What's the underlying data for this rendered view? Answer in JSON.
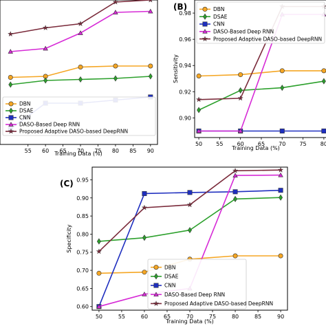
{
  "chart_data": [
    {
      "panel": "",
      "type": "line",
      "x": [
        50,
        60,
        70,
        80,
        90
      ],
      "xticks": [
        55,
        60,
        65,
        70,
        75,
        80,
        85,
        90
      ],
      "xlabel": "Training Data (%)",
      "ylabel": "",
      "xlim": [
        47,
        92
      ],
      "ylim": [
        0.86,
        1.0
      ],
      "grid": false,
      "legend_position": "bottom-right",
      "series": [
        {
          "name": "DBN",
          "values": [
            0.925,
            0.926,
            0.935,
            0.936,
            0.936
          ]
        },
        {
          "name": "DSAE",
          "values": [
            0.918,
            0.922,
            0.923,
            0.924,
            0.926
          ]
        },
        {
          "name": "CNN",
          "values": [
            0.875,
            0.9,
            0.9,
            0.903,
            0.906
          ]
        },
        {
          "name": "DASO-Based Deep RNN",
          "values": [
            0.95,
            0.953,
            0.968,
            0.988,
            0.989
          ]
        },
        {
          "name": "Proposed Adaptive DASO-based DeepRNN",
          "values": [
            0.967,
            0.973,
            0.977,
            0.998,
            1.0
          ]
        }
      ]
    },
    {
      "panel": "(B)",
      "type": "line",
      "x": [
        50,
        60,
        70,
        80
      ],
      "xticks": [
        50,
        55,
        60,
        65,
        70,
        75,
        80
      ],
      "xlabel": "Training Data (%)",
      "ylabel": "Sensitivity",
      "yticks": [
        0.9,
        0.92,
        0.94,
        0.96,
        0.98
      ],
      "ylim": [
        0.885,
        0.99
      ],
      "grid": false,
      "legend_position": "top-left",
      "series": [
        {
          "name": "DBN",
          "values": [
            0.932,
            0.933,
            0.936,
            0.936
          ]
        },
        {
          "name": "DSAE",
          "values": [
            0.906,
            0.921,
            0.923,
            0.928
          ]
        },
        {
          "name": "CNN",
          "values": [
            0.89,
            0.89,
            0.89,
            0.89
          ]
        },
        {
          "name": "DASO-Based Deep RNN",
          "values": [
            0.89,
            0.89,
            0.979,
            0.979
          ]
        },
        {
          "name": "Proposed Adaptive DASO-based DeepRNN",
          "values": [
            0.914,
            0.915,
            0.985,
            0.985
          ]
        }
      ]
    },
    {
      "panel": "(C)",
      "type": "line",
      "x": [
        50,
        60,
        70,
        80,
        90
      ],
      "xticks": [
        50,
        55,
        60,
        65,
        70,
        75,
        80,
        85,
        90
      ],
      "xlabel": "Training Data (%)",
      "ylabel": "Specificity",
      "yticks": [
        0.6,
        0.65,
        0.7,
        0.75,
        0.8,
        0.85,
        0.9,
        0.95
      ],
      "ylim": [
        0.59,
        0.985
      ],
      "grid": false,
      "legend_position": "bottom-left",
      "series": [
        {
          "name": "DBN",
          "values": [
            0.692,
            0.695,
            0.731,
            0.74,
            0.74
          ]
        },
        {
          "name": "DSAE",
          "values": [
            0.78,
            0.79,
            0.811,
            0.897,
            0.901
          ]
        },
        {
          "name": "CNN",
          "values": [
            0.6,
            0.912,
            0.915,
            0.917,
            0.921
          ]
        },
        {
          "name": "DASO-Based Deep RNN",
          "values": [
            0.6,
            0.634,
            0.65,
            0.962,
            0.963
          ]
        },
        {
          "name": "Proposed Adaptive DASO-based DeepRNN",
          "values": [
            0.752,
            0.873,
            0.881,
            0.975,
            0.977
          ]
        }
      ]
    }
  ],
  "styles": {
    "DBN": {
      "color": "#f5a623",
      "marker": "circle"
    },
    "DSAE": {
      "color": "#2ca02c",
      "marker": "diamond"
    },
    "CNN": {
      "color": "#1f2fbf",
      "marker": "square"
    },
    "DASO-Based Deep RNN": {
      "color": "#d62ad6",
      "marker": "triangle"
    },
    "Proposed Adaptive DASO-based DeepRNN": {
      "color": "#7a2a3a",
      "marker": "star"
    }
  }
}
